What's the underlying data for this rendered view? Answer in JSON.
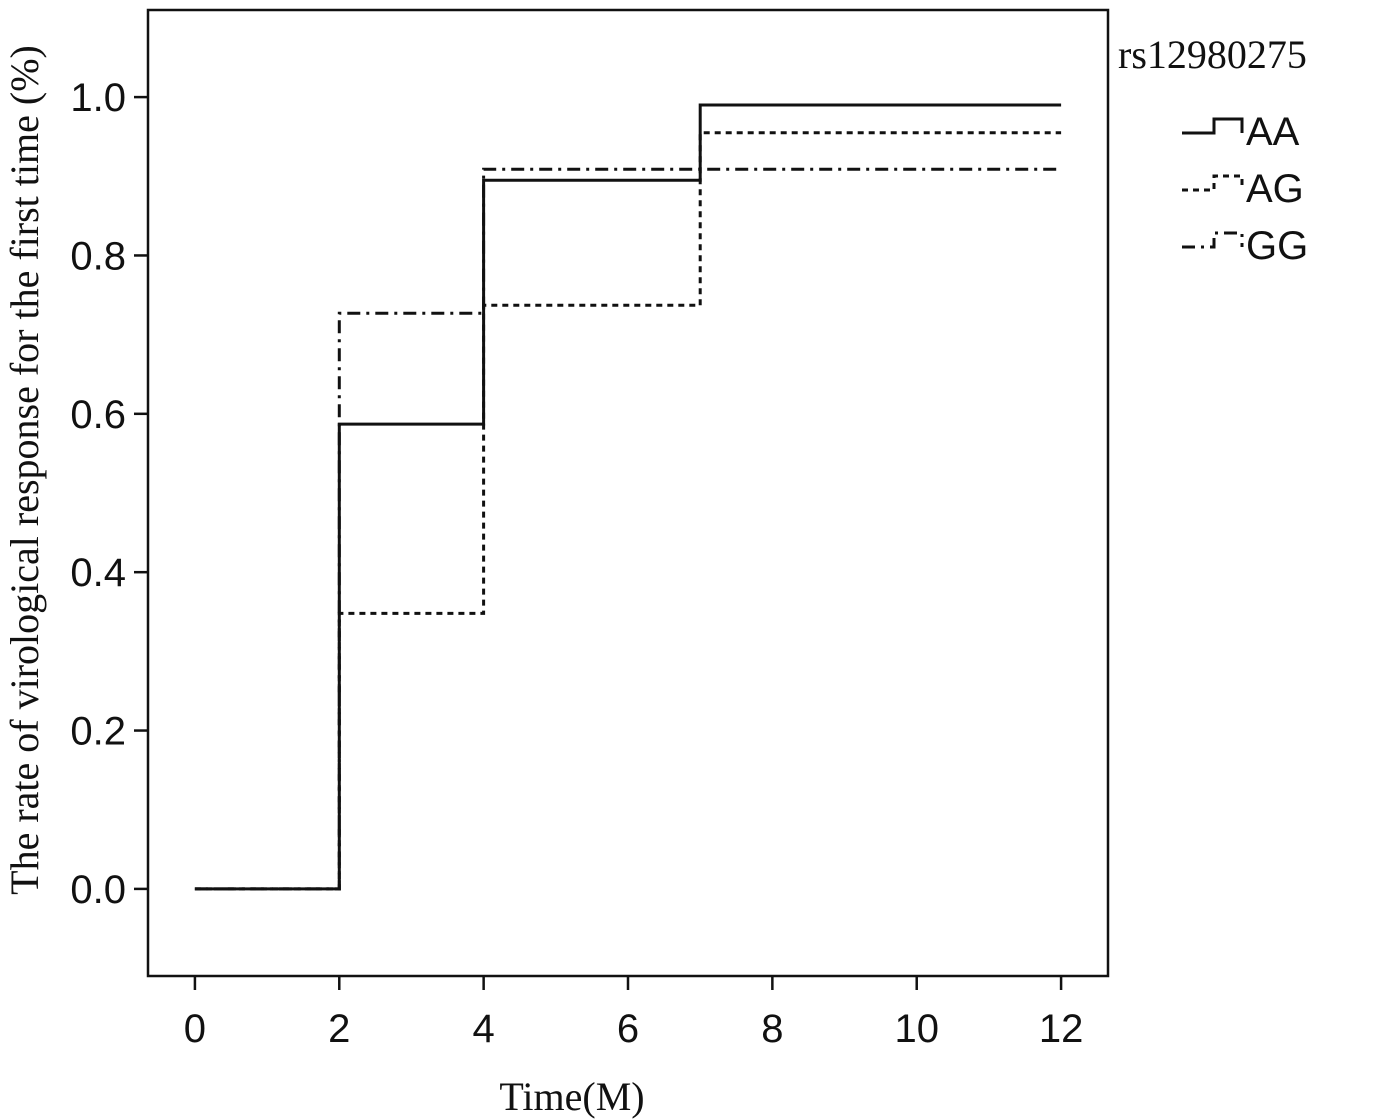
{
  "chart_data": {
    "type": "line",
    "step": true,
    "xlabel": "Time(M)",
    "ylabel": "The rate of virological response for the first time (%)",
    "xlim": [
      -0.65,
      12.65
    ],
    "ylim": [
      -0.11,
      1.11
    ],
    "xticks": [
      0,
      2,
      4,
      6,
      8,
      10,
      12
    ],
    "yticks": [
      0.0,
      0.2,
      0.4,
      0.6,
      0.8,
      1.0
    ],
    "ytick_labels": [
      "0.0",
      "0.2",
      "0.4",
      "0.6",
      "0.8",
      "1.0"
    ],
    "grid": false,
    "legend": {
      "title": "rs12980275",
      "placement": "right-outside-top"
    },
    "series": [
      {
        "name": "AA",
        "style": "solid",
        "color": "#111111",
        "x": [
          0,
          2,
          4,
          7,
          12
        ],
        "y": [
          0.0,
          0.587,
          0.895,
          0.99,
          0.99
        ]
      },
      {
        "name": "AG",
        "style": "dotted",
        "color": "#111111",
        "x": [
          0,
          2,
          4,
          7,
          12
        ],
        "y": [
          0.0,
          0.348,
          0.737,
          0.955,
          0.955
        ]
      },
      {
        "name": "GG",
        "style": "dashdot",
        "color": "#111111",
        "x": [
          0,
          2,
          4,
          7,
          12
        ],
        "y": [
          0.0,
          0.727,
          0.909,
          0.909,
          0.909
        ]
      }
    ]
  }
}
